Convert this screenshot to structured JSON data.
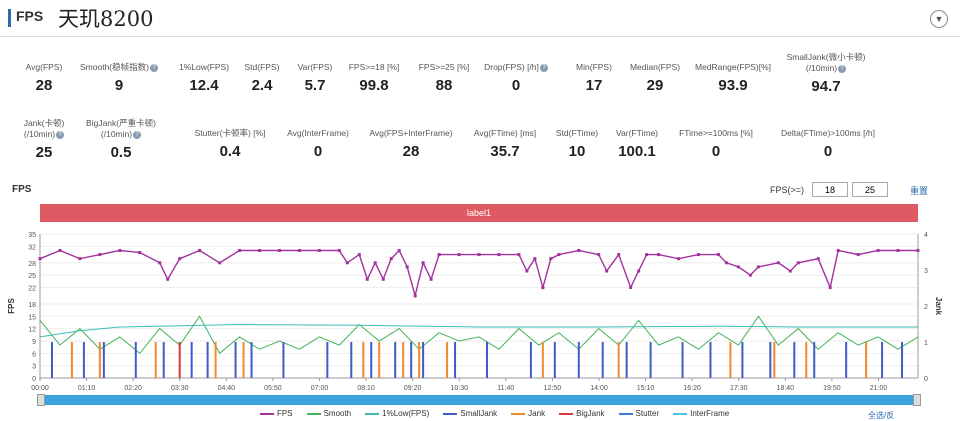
{
  "header": {
    "section_label": "FPS",
    "title": "天玑8200"
  },
  "metrics_row1": [
    {
      "label": "Avg(FPS)",
      "value": "28",
      "help": false
    },
    {
      "label": "Smooth(稳帧指数)",
      "value": "9",
      "help": true
    },
    {
      "label": "1%Low(FPS)",
      "value": "12.4",
      "help": false
    },
    {
      "label": "Std(FPS)",
      "value": "2.4",
      "help": false
    },
    {
      "label": "Var(FPS)",
      "value": "5.7",
      "help": false
    },
    {
      "label": "FPS>=18 [%]",
      "value": "99.8",
      "help": false
    },
    {
      "label": "FPS>=25 [%]",
      "value": "88",
      "help": false
    },
    {
      "label": "Drop(FPS) [/h]",
      "value": "0",
      "help": true
    },
    {
      "label": "Min(FPS)",
      "value": "17",
      "help": false
    },
    {
      "label": "Median(FPS)",
      "value": "29",
      "help": false
    },
    {
      "label": "MedRange(FPS)[%]",
      "value": "93.9",
      "help": false
    },
    {
      "label": "SmallJank(微小卡顿)",
      "label2": "(/10min)",
      "value": "94.7",
      "help": true
    }
  ],
  "metrics_row2": [
    {
      "label": "Jank(卡顿)",
      "label2": "(/10min)",
      "value": "25",
      "help": true
    },
    {
      "label": "BigJank(严重卡顿)",
      "label2": "(/10min)",
      "value": "0.5",
      "help": true
    },
    {
      "label": "Stutter(卡顿率) [%]",
      "value": "0.4",
      "help": false
    },
    {
      "label": "Avg(InterFrame)",
      "value": "0",
      "help": false
    },
    {
      "label": "Avg(FPS+InterFrame)",
      "value": "28",
      "help": false
    },
    {
      "label": "Avg(FTime) [ms]",
      "value": "35.7",
      "help": false
    },
    {
      "label": "Std(FTime)",
      "value": "10",
      "help": false
    },
    {
      "label": "Var(FTime)",
      "value": "100.1",
      "help": false
    },
    {
      "label": "FTime>=100ms [%]",
      "value": "0",
      "help": false
    },
    {
      "label": "Delta(FTime)>100ms [/h]",
      "value": "0",
      "help": false
    }
  ],
  "chart_section": {
    "title": "FPS",
    "filter_label": "FPS(>=)",
    "filter_low": "18",
    "filter_high": "25",
    "set_label": "重置",
    "band_label": "label1",
    "select_all": "全选/反"
  },
  "chart_data": {
    "type": "line",
    "left_axis_label": "FPS",
    "right_axis_label": "Jank",
    "left_ticks": [
      0,
      3,
      6,
      9,
      12,
      15,
      18,
      22,
      25,
      28,
      32,
      35
    ],
    "left_ylim": [
      0,
      35
    ],
    "right_ticks": [
      0,
      1,
      2,
      3,
      4
    ],
    "right_ylim": [
      0,
      4
    ],
    "x_ticks": [
      "00:00",
      "01:10",
      "02:20",
      "03:30",
      "04:40",
      "05:50",
      "07:00",
      "08:10",
      "09:20",
      "10:30",
      "11:40",
      "12:50",
      "14:00",
      "15:10",
      "16:20",
      "17:30",
      "18:40",
      "19:50",
      "21:00"
    ],
    "x_range_min": [
      0,
      22.0
    ],
    "series": [
      {
        "name": "FPS",
        "color": "#a3319e",
        "axis": "left",
        "points": [
          [
            0,
            29
          ],
          [
            0.5,
            31
          ],
          [
            1,
            29
          ],
          [
            1.5,
            30
          ],
          [
            2,
            31
          ],
          [
            2.5,
            30.5
          ],
          [
            3,
            28
          ],
          [
            3.2,
            24
          ],
          [
            3.5,
            29
          ],
          [
            4,
            31
          ],
          [
            4.5,
            28
          ],
          [
            5,
            31
          ],
          [
            5.5,
            31
          ],
          [
            6,
            31
          ],
          [
            6.5,
            31
          ],
          [
            7,
            31
          ],
          [
            7.5,
            31
          ],
          [
            7.7,
            28
          ],
          [
            8,
            30
          ],
          [
            8.2,
            24
          ],
          [
            8.4,
            28
          ],
          [
            8.6,
            24
          ],
          [
            8.8,
            29
          ],
          [
            9,
            31
          ],
          [
            9.2,
            27
          ],
          [
            9.4,
            20
          ],
          [
            9.6,
            28
          ],
          [
            9.8,
            24
          ],
          [
            10,
            30
          ],
          [
            10.5,
            30
          ],
          [
            11,
            30
          ],
          [
            11.5,
            30
          ],
          [
            12,
            30
          ],
          [
            12.2,
            26
          ],
          [
            12.4,
            29
          ],
          [
            12.6,
            22
          ],
          [
            12.8,
            29
          ],
          [
            13,
            30
          ],
          [
            13.5,
            31
          ],
          [
            14,
            30
          ],
          [
            14.2,
            26
          ],
          [
            14.5,
            30
          ],
          [
            14.8,
            22
          ],
          [
            15,
            26
          ],
          [
            15.2,
            30
          ],
          [
            15.5,
            30
          ],
          [
            16,
            29
          ],
          [
            16.5,
            30
          ],
          [
            17,
            30
          ],
          [
            17.2,
            28
          ],
          [
            17.5,
            27
          ],
          [
            17.8,
            25
          ],
          [
            18,
            27
          ],
          [
            18.5,
            28
          ],
          [
            18.8,
            26
          ],
          [
            19,
            28
          ],
          [
            19.5,
            29
          ],
          [
            19.8,
            22
          ],
          [
            20,
            31
          ],
          [
            20.5,
            30
          ],
          [
            21,
            31
          ],
          [
            21.5,
            31
          ],
          [
            22,
            31
          ]
        ]
      },
      {
        "name": "Smooth",
        "color": "#44b35c",
        "axis": "left",
        "points": [
          [
            0,
            14
          ],
          [
            0.5,
            8
          ],
          [
            1,
            12
          ],
          [
            1.5,
            7
          ],
          [
            2,
            10
          ],
          [
            2.5,
            6
          ],
          [
            3,
            12
          ],
          [
            3.5,
            8
          ],
          [
            4,
            15
          ],
          [
            4.5,
            6
          ],
          [
            5,
            10
          ],
          [
            5.5,
            7
          ],
          [
            6,
            9
          ],
          [
            6.5,
            7
          ],
          [
            7,
            10
          ],
          [
            7.5,
            8
          ],
          [
            8,
            13
          ],
          [
            8.5,
            9
          ],
          [
            9,
            12
          ],
          [
            9.5,
            7
          ],
          [
            10,
            11
          ],
          [
            10.5,
            9
          ],
          [
            11,
            10
          ],
          [
            11.5,
            7
          ],
          [
            12,
            12
          ],
          [
            12.5,
            8
          ],
          [
            13,
            11
          ],
          [
            13.5,
            7
          ],
          [
            14,
            12
          ],
          [
            14.5,
            8
          ],
          [
            15,
            14
          ],
          [
            15.5,
            8
          ],
          [
            16,
            10
          ],
          [
            16.5,
            7
          ],
          [
            17,
            11
          ],
          [
            17.5,
            8
          ],
          [
            18,
            15
          ],
          [
            18.5,
            8
          ],
          [
            19,
            12
          ],
          [
            19.5,
            7
          ],
          [
            20,
            11
          ],
          [
            20.5,
            8
          ],
          [
            21,
            10
          ],
          [
            21.5,
            7
          ],
          [
            22,
            10
          ]
        ]
      },
      {
        "name": "1%Low(FPS)",
        "color": "#3dbcb6",
        "axis": "left",
        "points": [
          [
            0,
            10
          ],
          [
            1,
            11.5
          ],
          [
            2,
            12.4
          ],
          [
            5,
            13
          ],
          [
            8,
            12.8
          ],
          [
            11,
            12.4
          ],
          [
            14,
            12.4
          ],
          [
            17,
            12.6
          ],
          [
            19,
            12.4
          ],
          [
            22,
            12.4
          ]
        ]
      },
      {
        "name": "SmallJank",
        "color": "#3f5bc4",
        "axis": "right",
        "spikes": [
          0.3,
          1.1,
          1.6,
          2.4,
          3.1,
          3.8,
          4.2,
          4.9,
          5.3,
          6.1,
          7.2,
          7.8,
          8.3,
          8.9,
          9.3,
          9.6,
          10.4,
          11.2,
          12.3,
          12.9,
          13.5,
          14.1,
          14.7,
          15.3,
          16.1,
          16.8,
          17.6,
          18.3,
          18.9,
          19.4,
          20.2,
          21.1,
          21.6
        ]
      },
      {
        "name": "Jank",
        "color": "#f08a2c",
        "axis": "right",
        "spikes": [
          0.8,
          1.5,
          2.9,
          4.4,
          5.1,
          8.1,
          8.5,
          9.1,
          9.5,
          10.2,
          12.6,
          14.5,
          17.3,
          18.4,
          19.2,
          20.7
        ]
      },
      {
        "name": "BigJank",
        "color": "#d9343f",
        "axis": "right",
        "spikes": [
          3.5
        ]
      },
      {
        "name": "Stutter",
        "color": "#3b7fd4",
        "axis": "right",
        "points": []
      },
      {
        "name": "InterFrame",
        "color": "#4fc4e0",
        "axis": "right",
        "points": []
      }
    ]
  }
}
